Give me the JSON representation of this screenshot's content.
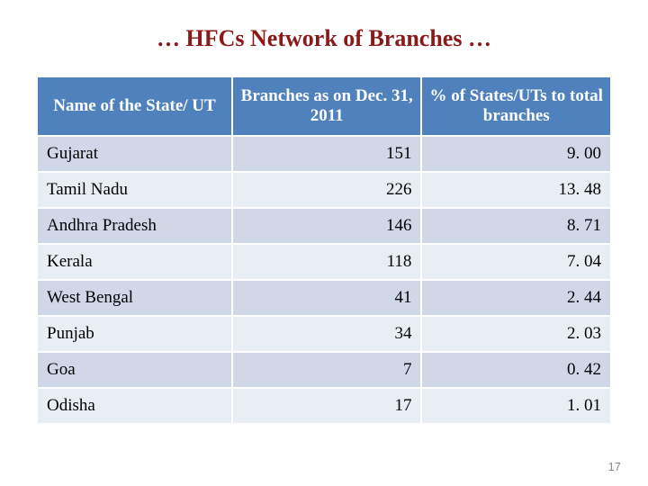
{
  "title": "… HFCs Network of Branches …",
  "title_color": "#8a1a1a",
  "title_fontsize": 26,
  "table": {
    "header_bg": "#4f81bd",
    "header_color": "#ffffff",
    "row_odd_bg": "#d0d8e8",
    "row_even_bg": "#e9edf4",
    "border_color": "#ffffff",
    "cell_fontsize": 19,
    "header_fontsize": 19,
    "col_widths": [
      "34%",
      "33%",
      "33%"
    ],
    "columns": [
      "Name of the State/ UT",
      "Branches as on Dec. 31, 2011",
      "% of States/UTs to total branches"
    ],
    "rows": [
      {
        "state": "Gujarat",
        "branches": "151",
        "pct": "9. 00"
      },
      {
        "state": "Tamil Nadu",
        "branches": "226",
        "pct": "13. 48"
      },
      {
        "state": "Andhra Pradesh",
        "branches": "146",
        "pct": "8. 71"
      },
      {
        "state": "Kerala",
        "branches": "118",
        "pct": "7. 04"
      },
      {
        "state": "West Bengal",
        "branches": "41",
        "pct": "2. 44"
      },
      {
        "state": "Punjab",
        "branches": "34",
        "pct": "2. 03"
      },
      {
        "state": "Goa",
        "branches": "7",
        "pct": "0. 42"
      },
      {
        "state": "Odisha",
        "branches": "17",
        "pct": "1. 01"
      }
    ]
  },
  "page_number": "17",
  "page_number_fontsize": 13
}
